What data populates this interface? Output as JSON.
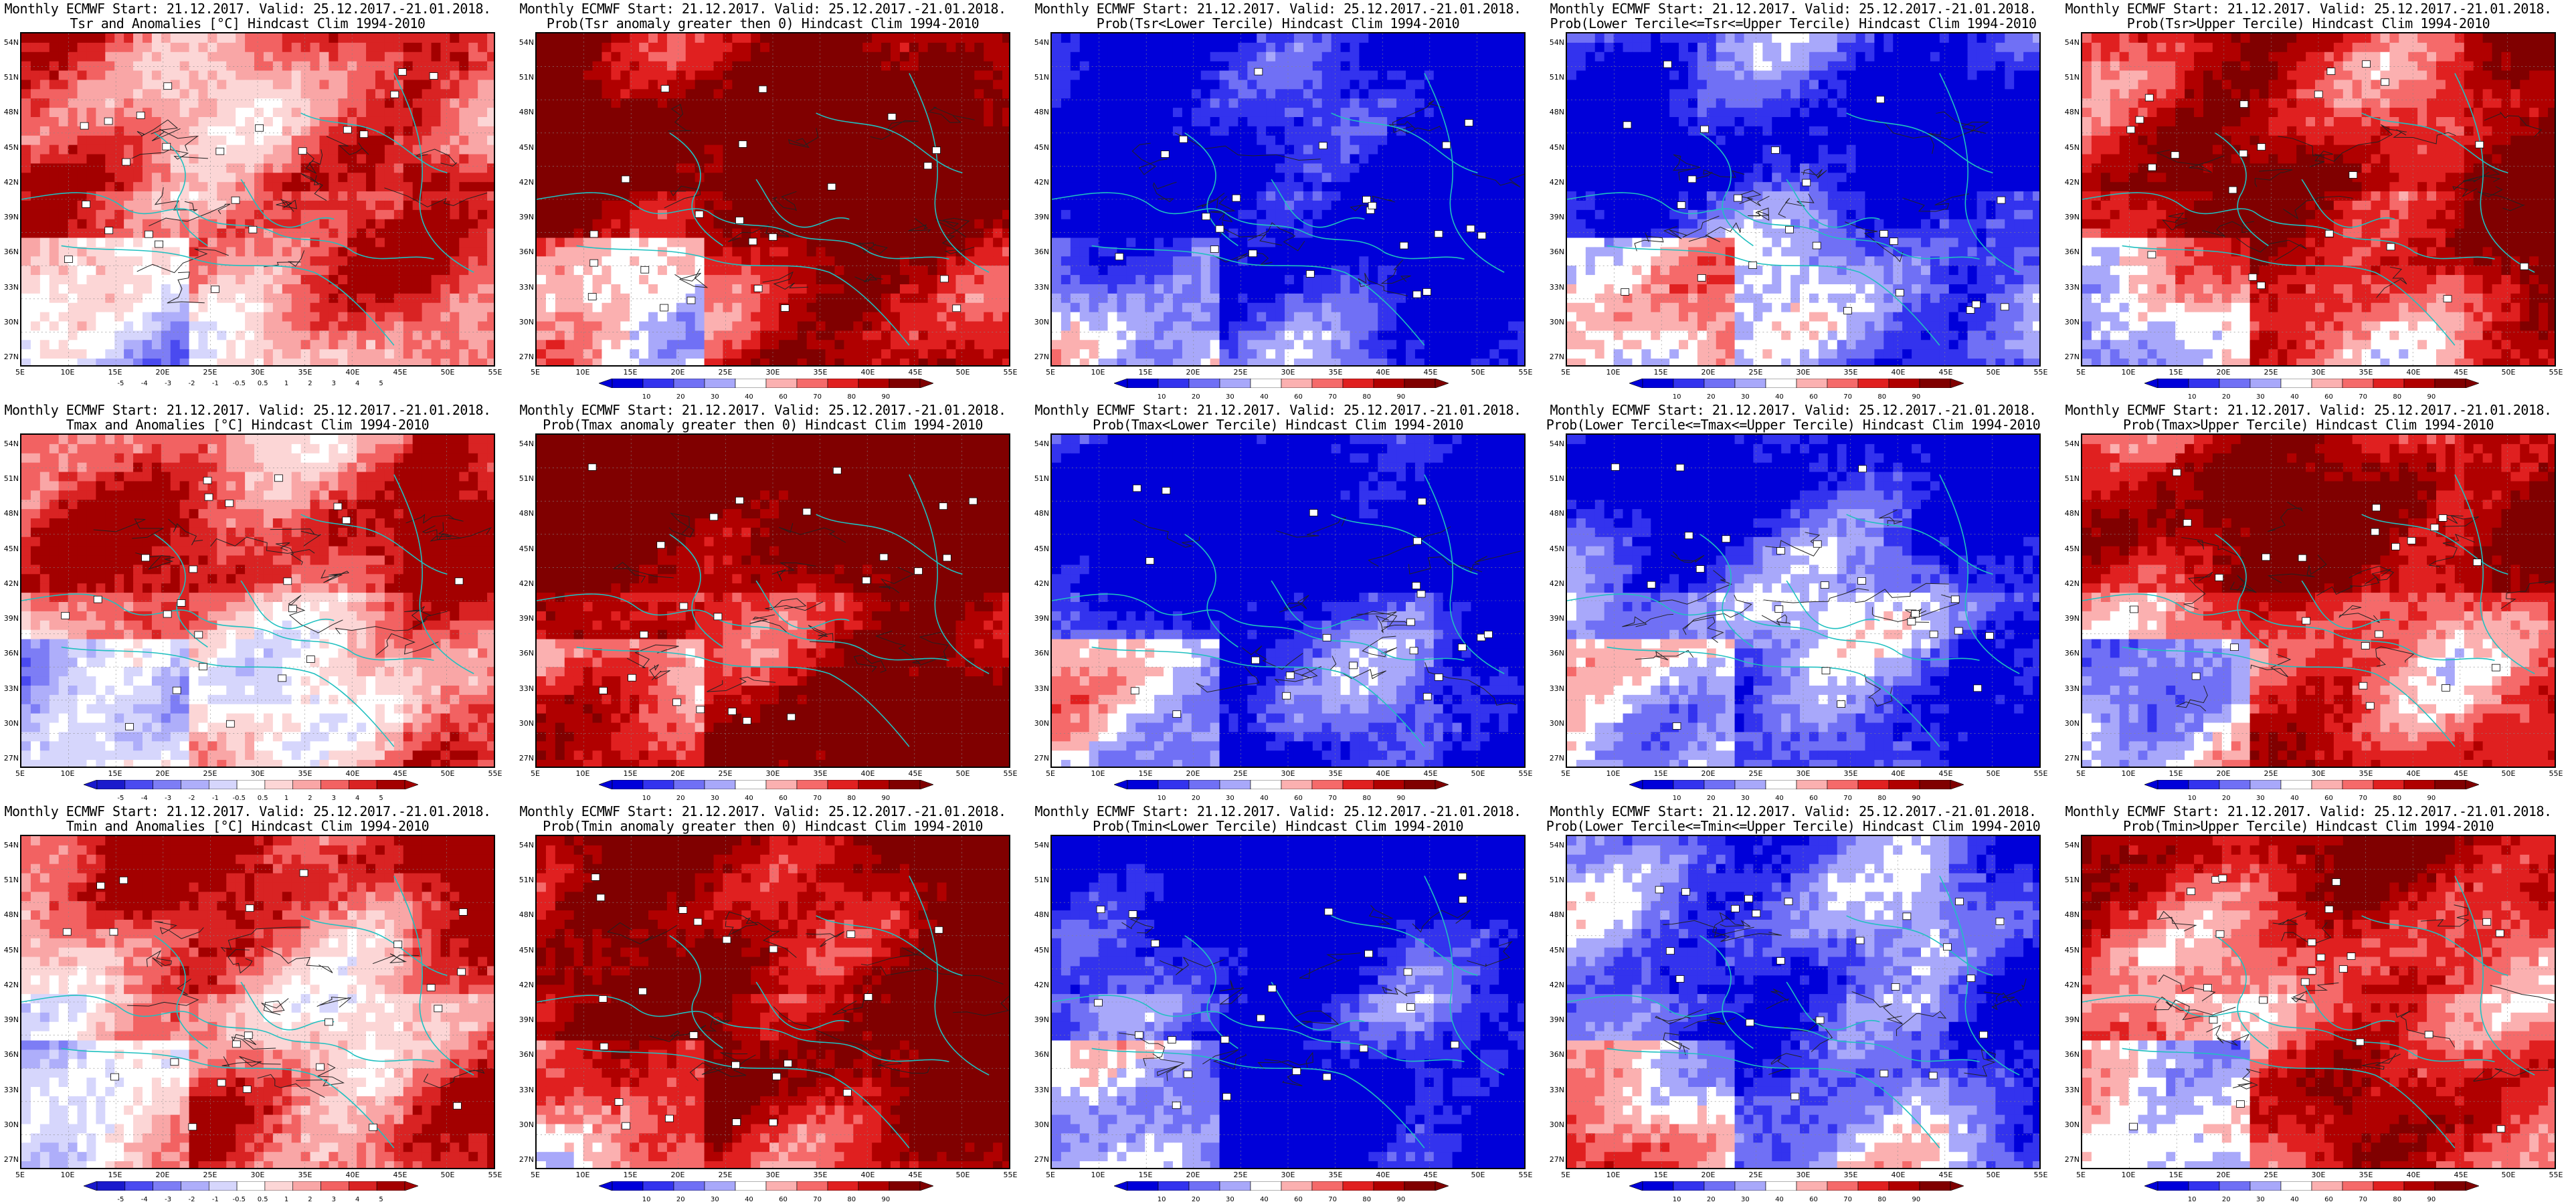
{
  "lat_ticks": [
    "54N",
    "51N",
    "48N",
    "45N",
    "42N",
    "39N",
    "36N",
    "33N",
    "30N",
    "27N"
  ],
  "lon_ticks": [
    "5E",
    "10E",
    "15E",
    "20E",
    "25E",
    "30E",
    "35E",
    "40E",
    "45E",
    "50E",
    "55E"
  ],
  "colors": {
    "anomaly": [
      "#1a1acc",
      "#4a4af0",
      "#7d7df5",
      "#aeaefa",
      "#d6d6fc",
      "#ffffff",
      "#fcd6d6",
      "#f9a6a6",
      "#f26262",
      "#d92323",
      "#a30000"
    ],
    "prob": [
      "#0000d9",
      "#3333ee",
      "#7070f5",
      "#a8a8fa",
      "#ffffff",
      "#fbb0b0",
      "#f56a6a",
      "#e02020",
      "#b00000",
      "#800000"
    ],
    "coast": "#20c0c0"
  },
  "rows": [
    {
      "panels": [
        {
          "title1": "Monthly ECMWF Start: 21.12.2017. Valid: 25.12.2017.-21.01.2018.",
          "title2": "Tsr and Anomalies [°C] Hindcast Clim 1994-2010",
          "scale": "anomaly",
          "bias": 0.4,
          "cbar": [
            "-5",
            "-4",
            "-3",
            "-2",
            "-1",
            "-0.5",
            "0.5",
            "1",
            "2",
            "3",
            "4",
            "5"
          ]
        },
        {
          "title1": "Monthly ECMWF Start: 21.12.2017. Valid: 25.12.2017.-21.01.2018.",
          "title2": "Prob(Tsr anomaly greater then 0) Hindcast Clim 1994-2010",
          "scale": "prob",
          "bias": 0.75,
          "cbar": [
            "10",
            "20",
            "30",
            "40",
            "60",
            "70",
            "80",
            "90"
          ]
        },
        {
          "title1": "Monthly ECMWF Start: 21.12.2017. Valid: 25.12.2017.-21.01.2018.",
          "title2": "Prob(Tsr<Lower Tercile) Hindcast Clim 1994-2010",
          "scale": "prob",
          "bias": -0.8,
          "cbar": [
            "10",
            "20",
            "30",
            "40",
            "60",
            "70",
            "80",
            "90"
          ]
        },
        {
          "title1": "Monthly ECMWF Start: 21.12.2017. Valid: 25.12.2017.-21.01.2018.",
          "title2": "Prob(Lower Tercile<=Tsr<=Upper Tercile) Hindcast Clim 1994-2010",
          "scale": "prob",
          "bias": -0.55,
          "cbar": [
            "10",
            "20",
            "30",
            "40",
            "60",
            "70",
            "80",
            "90"
          ]
        },
        {
          "title1": "Monthly ECMWF Start: 21.12.2017. Valid: 25.12.2017.-21.01.2018.",
          "title2": "Prob(Tsr>Upper Tercile) Hindcast Clim 1994-2010",
          "scale": "prob",
          "bias": 0.5,
          "cbar": [
            "10",
            "20",
            "30",
            "40",
            "60",
            "70",
            "80",
            "90"
          ]
        }
      ]
    },
    {
      "panels": [
        {
          "title1": "Monthly ECMWF Start: 21.12.2017. Valid: 25.12.2017.-21.01.2018.",
          "title2": "Tmax and Anomalies [°C] Hindcast Clim 1994-2010",
          "scale": "anomaly",
          "bias": 0.35,
          "cbar": [
            "-5",
            "-4",
            "-3",
            "-2",
            "-1",
            "-0.5",
            "0.5",
            "1",
            "2",
            "3",
            "4",
            "5"
          ]
        },
        {
          "title1": "Monthly ECMWF Start: 21.12.2017. Valid: 25.12.2017.-21.01.2018.",
          "title2": "Prob(Tmax anomaly greater then 0) Hindcast Clim 1994-2010",
          "scale": "prob",
          "bias": 0.8,
          "cbar": [
            "10",
            "20",
            "30",
            "40",
            "60",
            "70",
            "80",
            "90"
          ]
        },
        {
          "title1": "Monthly ECMWF Start: 21.12.2017. Valid: 25.12.2017.-21.01.2018.",
          "title2": "Prob(Tmax<Lower Tercile) Hindcast Clim 1994-2010",
          "scale": "prob",
          "bias": -0.8,
          "cbar": [
            "10",
            "20",
            "30",
            "40",
            "60",
            "70",
            "80",
            "90"
          ]
        },
        {
          "title1": "Monthly ECMWF Start: 21.12.2017. Valid: 25.12.2017.-21.01.2018.",
          "title2": "Prob(Lower Tercile<=Tmax<=Upper Tercile) Hindcast Clim 1994-2010",
          "scale": "prob",
          "bias": -0.5,
          "cbar": [
            "10",
            "20",
            "30",
            "40",
            "60",
            "70",
            "80",
            "90"
          ]
        },
        {
          "title1": "Monthly ECMWF Start: 21.12.2017. Valid: 25.12.2017.-21.01.2018.",
          "title2": "Prob(Tmax>Upper Tercile) Hindcast Clim 1994-2010",
          "scale": "prob",
          "bias": 0.45,
          "cbar": [
            "10",
            "20",
            "30",
            "40",
            "60",
            "70",
            "80",
            "90"
          ]
        }
      ]
    },
    {
      "panels": [
        {
          "title1": "Monthly ECMWF Start: 21.12.2017. Valid: 25.12.2017.-21.01.2018.",
          "title2": "Tmin and Anomalies [°C] Hindcast Clim 1994-2010",
          "scale": "anomaly",
          "bias": 0.4,
          "cbar": [
            "-5",
            "-4",
            "-3",
            "-2",
            "-1",
            "-0.5",
            "0.5",
            "1",
            "2",
            "3",
            "4",
            "5"
          ]
        },
        {
          "title1": "Monthly ECMWF Start: 21.12.2017. Valid: 25.12.2017.-21.01.2018.",
          "title2": "Prob(Tmin anomaly greater then 0) Hindcast Clim 1994-2010",
          "scale": "prob",
          "bias": 0.7,
          "cbar": [
            "10",
            "20",
            "30",
            "40",
            "60",
            "70",
            "80",
            "90"
          ]
        },
        {
          "title1": "Monthly ECMWF Start: 21.12.2017. Valid: 25.12.2017.-21.01.2018.",
          "title2": "Prob(Tmin<Lower Tercile) Hindcast Clim 1994-2010",
          "scale": "prob",
          "bias": -0.8,
          "cbar": [
            "10",
            "20",
            "30",
            "40",
            "60",
            "70",
            "80",
            "90"
          ]
        },
        {
          "title1": "Monthly ECMWF Start: 21.12.2017. Valid: 25.12.2017.-21.01.2018.",
          "title2": "Prob(Lower Tercile<=Tmin<=Upper Tercile) Hindcast Clim 1994-2010",
          "scale": "prob",
          "bias": -0.45,
          "cbar": [
            "10",
            "20",
            "30",
            "40",
            "60",
            "70",
            "80",
            "90"
          ]
        },
        {
          "title1": "Monthly ECMWF Start: 21.12.2017. Valid: 25.12.2017.-21.01.2018.",
          "title2": "Prob(Tmin>Upper Tercile) Hindcast Clim 1994-2010",
          "scale": "prob",
          "bias": 0.35,
          "cbar": [
            "10",
            "20",
            "30",
            "40",
            "60",
            "70",
            "80",
            "90"
          ]
        }
      ]
    }
  ]
}
